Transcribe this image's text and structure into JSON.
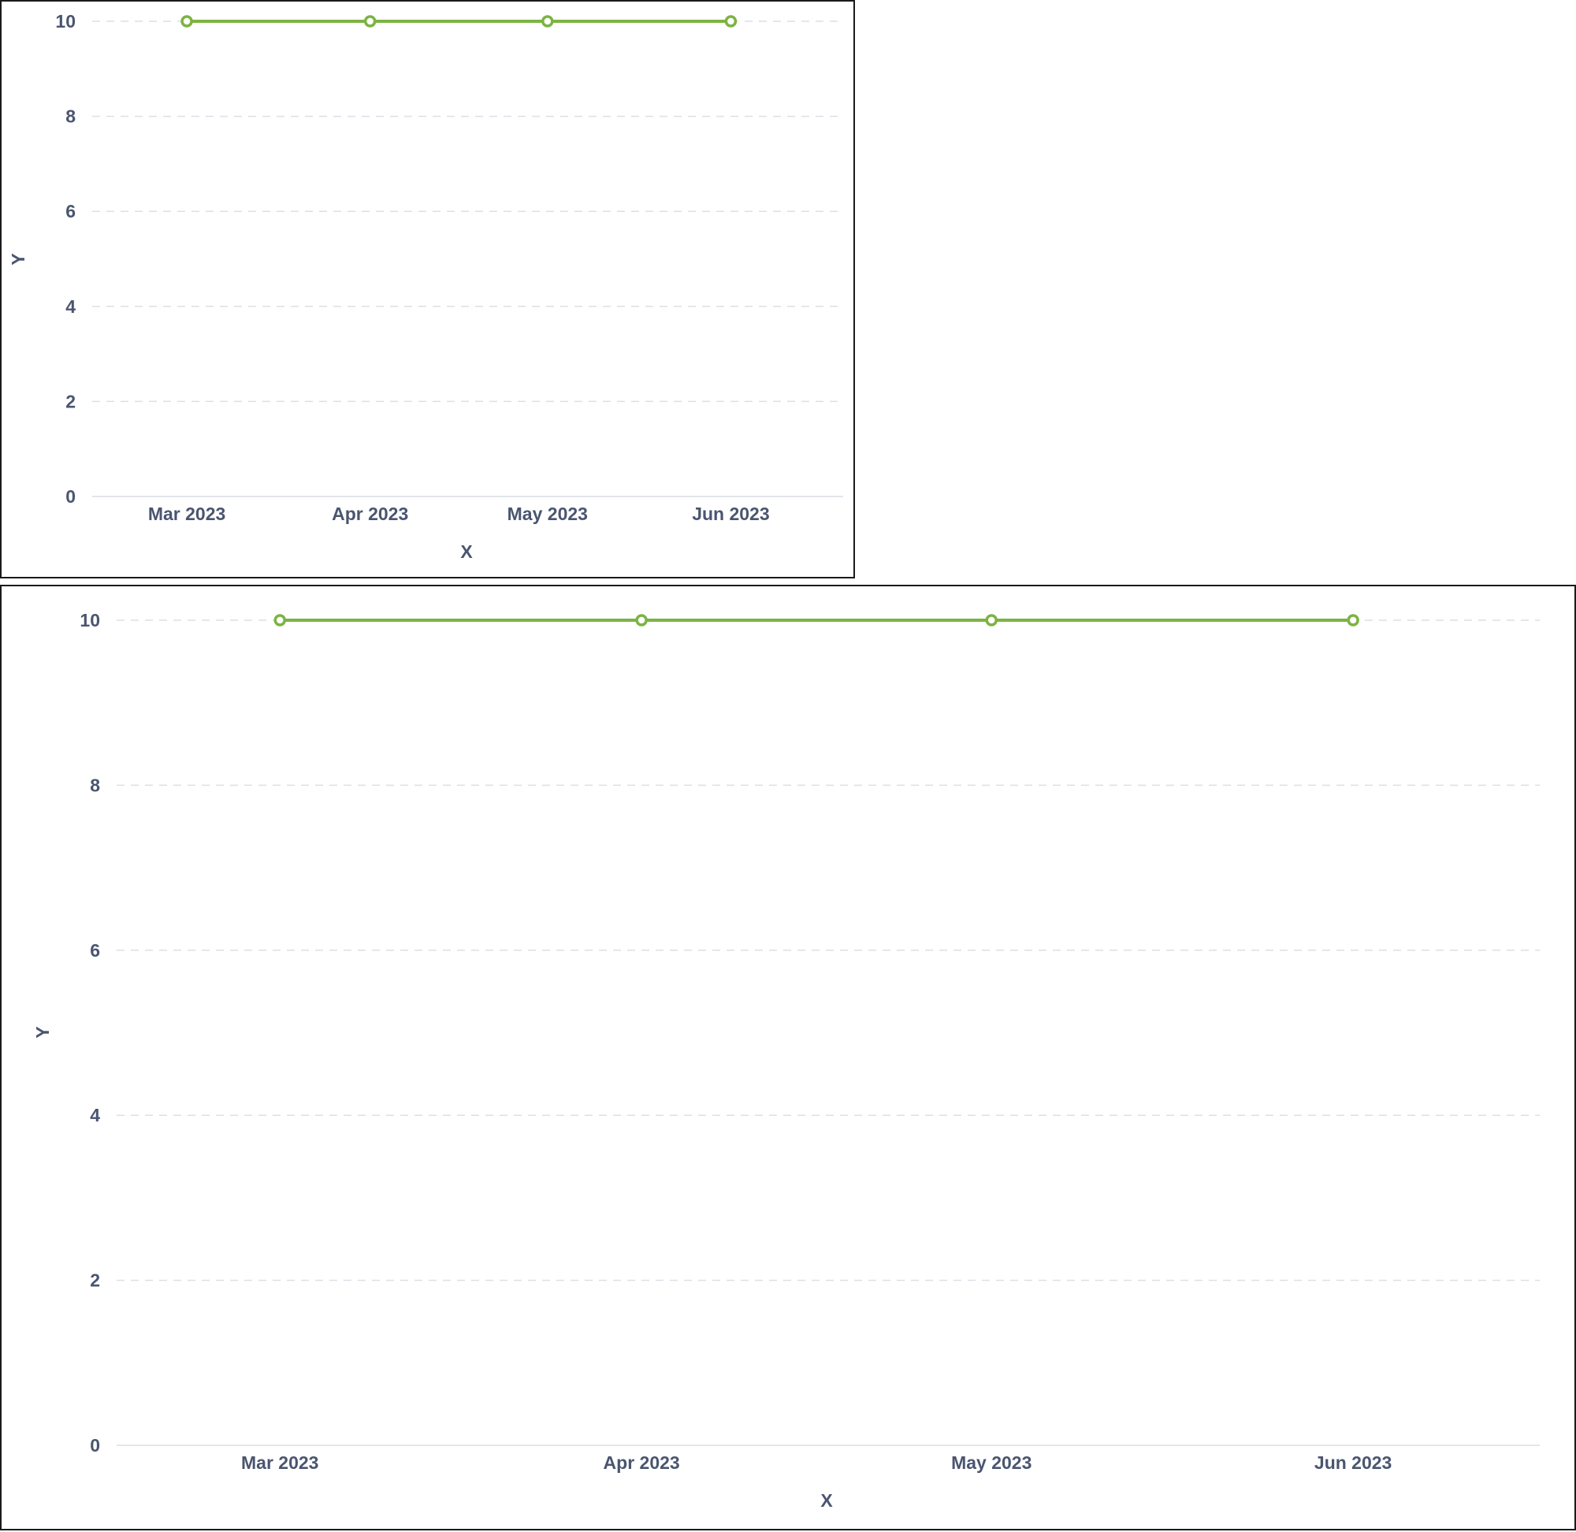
{
  "chart_data": [
    {
      "type": "line",
      "x": [
        "2023-03-01",
        "2023-04-01",
        "2023-05-01",
        "2023-06-01"
      ],
      "x_tick_labels": [
        "Mar 2023",
        "Apr 2023",
        "May 2023",
        "Jun 2023"
      ],
      "series": [
        {
          "values": [
            10,
            10,
            10,
            10
          ],
          "color": "#7cb342"
        }
      ],
      "y_ticks": [
        0,
        2,
        4,
        6,
        8,
        10
      ],
      "xlabel": "X",
      "ylabel": "Y",
      "ylim": [
        0,
        10
      ],
      "xlim": [
        "2023-02-13",
        "2023-06-20"
      ],
      "grid": "horizontal-dashed",
      "marker": "hollow-circle"
    },
    {
      "type": "line",
      "x": [
        "2023-03-01",
        "2023-04-01",
        "2023-05-01",
        "2023-06-01"
      ],
      "x_tick_labels": [
        "Mar 2023",
        "Apr 2023",
        "May 2023",
        "Jun 2023"
      ],
      "series": [
        {
          "values": [
            10,
            10,
            10,
            10
          ],
          "color": "#7cb342"
        }
      ],
      "y_ticks": [
        0,
        2,
        4,
        6,
        8,
        10
      ],
      "xlabel": "X",
      "ylabel": "Y",
      "ylim": [
        0,
        10
      ],
      "xlim": [
        "2023-02-15",
        "2023-06-17"
      ],
      "grid": "horizontal-dashed",
      "marker": "hollow-circle"
    }
  ]
}
